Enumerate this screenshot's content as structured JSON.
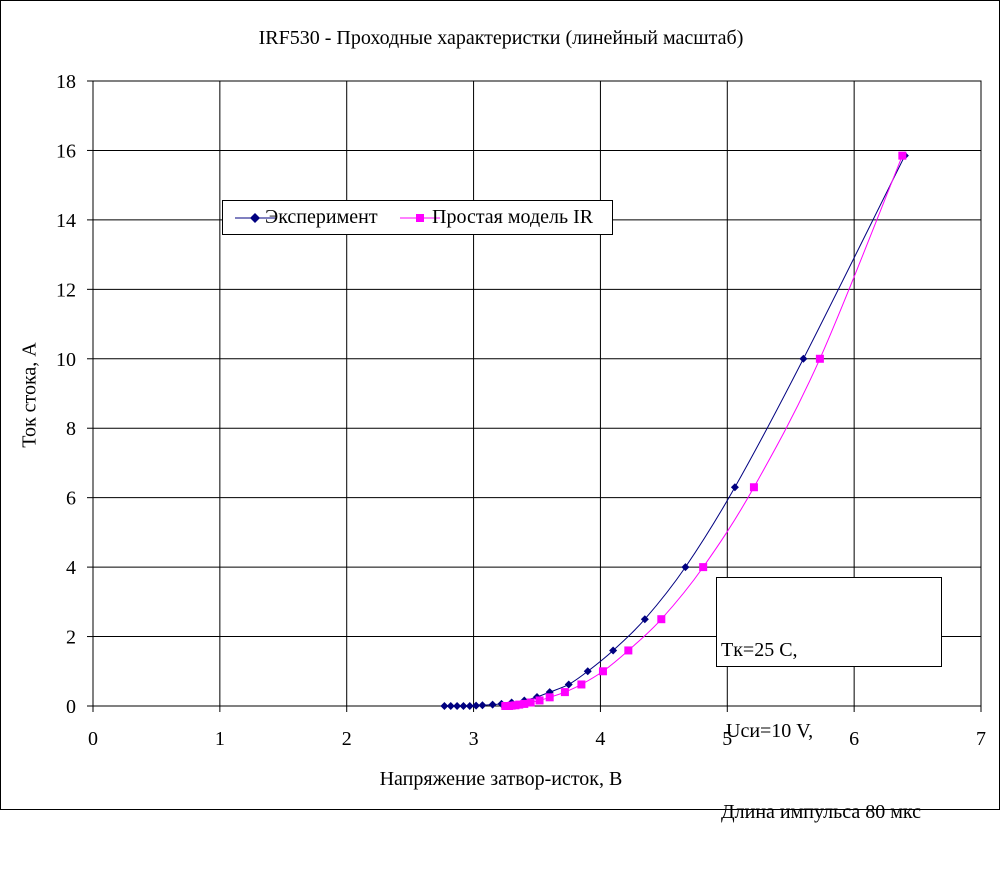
{
  "chart_data": {
    "type": "scatter",
    "title": "IRF530 - Проходные характеристки (линейный масштаб)",
    "xlabel": "Напряжение затвор-исток, В",
    "ylabel": "Ток стока, А",
    "xlim": [
      0,
      7
    ],
    "ylim": [
      0,
      18
    ],
    "xticks": [
      "0",
      "1",
      "2",
      "3",
      "4",
      "5",
      "6",
      "7"
    ],
    "yticks": [
      "0",
      "2",
      "4",
      "6",
      "8",
      "10",
      "12",
      "14",
      "16",
      "18"
    ],
    "grid": true,
    "legend_position": "top-left",
    "series": [
      {
        "name": "Эксперимент",
        "color": "#000080",
        "marker": "diamond",
        "x": [
          2.77,
          2.82,
          2.87,
          2.92,
          2.97,
          3.02,
          3.07,
          3.15,
          3.22,
          3.3,
          3.4,
          3.5,
          3.6,
          3.75,
          3.9,
          4.1,
          4.35,
          4.67,
          5.06,
          5.6,
          6.4
        ],
        "y": [
          0.0,
          0.0,
          0.0,
          0.0,
          0.0,
          0.01,
          0.02,
          0.04,
          0.06,
          0.1,
          0.16,
          0.26,
          0.4,
          0.62,
          1.0,
          1.6,
          2.5,
          4.0,
          6.3,
          10.0,
          15.85
        ]
      },
      {
        "name": "Простая модель IR",
        "color": "#FF00FF",
        "marker": "square",
        "x": [
          3.25,
          3.28,
          3.3,
          3.33,
          3.36,
          3.4,
          3.45,
          3.52,
          3.6,
          3.72,
          3.85,
          4.02,
          4.22,
          4.48,
          4.81,
          5.21,
          5.73,
          6.38
        ],
        "y": [
          0.0,
          0.0,
          0.01,
          0.02,
          0.04,
          0.06,
          0.1,
          0.16,
          0.25,
          0.4,
          0.62,
          1.0,
          1.6,
          2.5,
          4.0,
          6.3,
          10.0,
          15.85
        ]
      }
    ],
    "annotation": [
      "Tк=25 C,",
      " Uси=10 V,",
      "Длина импульса 80 мкс"
    ]
  }
}
